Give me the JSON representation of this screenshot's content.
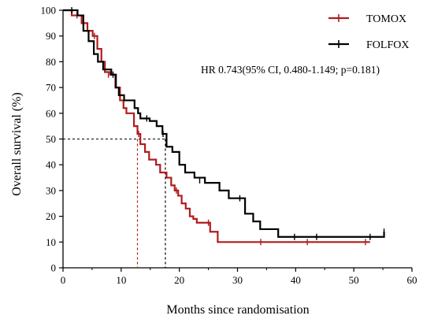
{
  "chart_data": {
    "type": "line",
    "subtype": "kaplan-meier",
    "xlabel": "Months since randomisation",
    "ylabel": "Overall survival (%)",
    "xlim": [
      0,
      60
    ],
    "ylim": [
      0,
      100
    ],
    "xticks": [
      0,
      10,
      20,
      30,
      40,
      50,
      60
    ],
    "yticks": [
      0,
      10,
      20,
      30,
      40,
      50,
      60,
      70,
      80,
      90,
      100
    ],
    "grid": false,
    "legend_position": "top-right",
    "annotation": "HR 0.743(95% CI, 0.480-1.149; p=0.181)",
    "series": [
      {
        "name": "TOMOX",
        "color": "#b01c1c",
        "x": [
          0,
          1.5,
          3.2,
          4.2,
          5.1,
          5.9,
          6.6,
          7.2,
          8.1,
          9.0,
          9.8,
          10.4,
          10.9,
          12.2,
          12.8,
          13.3,
          14.1,
          14.8,
          16.0,
          16.7,
          17.8,
          18.6,
          19.2,
          19.8,
          20.4,
          21.1,
          21.8,
          22.4,
          23.0,
          25.3,
          26.6,
          52.8
        ],
        "y": [
          100,
          98,
          95,
          92,
          90,
          85,
          80,
          76,
          75,
          70,
          65,
          62,
          60,
          55,
          52,
          48,
          45,
          42,
          40,
          37,
          35,
          32,
          30,
          28,
          25,
          23,
          20,
          19,
          17.5,
          14,
          10,
          10
        ],
        "censor_x": [
          2.4,
          5.4,
          7.8,
          13.0,
          19.5,
          25.0,
          34.0,
          42.0,
          52.0
        ],
        "censor_y": [
          98,
          90,
          75,
          52,
          30,
          17.5,
          10,
          10,
          10
        ]
      },
      {
        "name": "FOLFOX",
        "color": "#000000",
        "x": [
          0,
          2.5,
          3.5,
          4.4,
          5.3,
          6.0,
          6.9,
          8.3,
          9.1,
          9.6,
          10.5,
          12.3,
          12.9,
          13.3,
          14.9,
          16.1,
          17.1,
          17.8,
          18.8,
          20.0,
          21.0,
          22.6,
          24.4,
          26.9,
          28.5,
          31.3,
          32.7,
          33.9,
          37.0,
          40.0,
          43.5,
          55.2
        ],
        "y": [
          100,
          98,
          92,
          88,
          83,
          80,
          77,
          75,
          70,
          67,
          65,
          62,
          60,
          58,
          57,
          55,
          52,
          47,
          45,
          40,
          37,
          35,
          33,
          30,
          27,
          21,
          18,
          15,
          12,
          12,
          12,
          14
        ],
        "censor_x": [
          1.5,
          8.6,
          14.4,
          17.2,
          23.5,
          30.4,
          39.8,
          43.6,
          52.8,
          55.2
        ],
        "censor_y": [
          100,
          75,
          58,
          52,
          34,
          27,
          12,
          12,
          12,
          14
        ]
      }
    ],
    "median_lines": [
      {
        "series": "TOMOX",
        "x": 12.8,
        "y": 50
      },
      {
        "series": "FOLFOX",
        "x": 17.6,
        "y": 50
      }
    ]
  }
}
